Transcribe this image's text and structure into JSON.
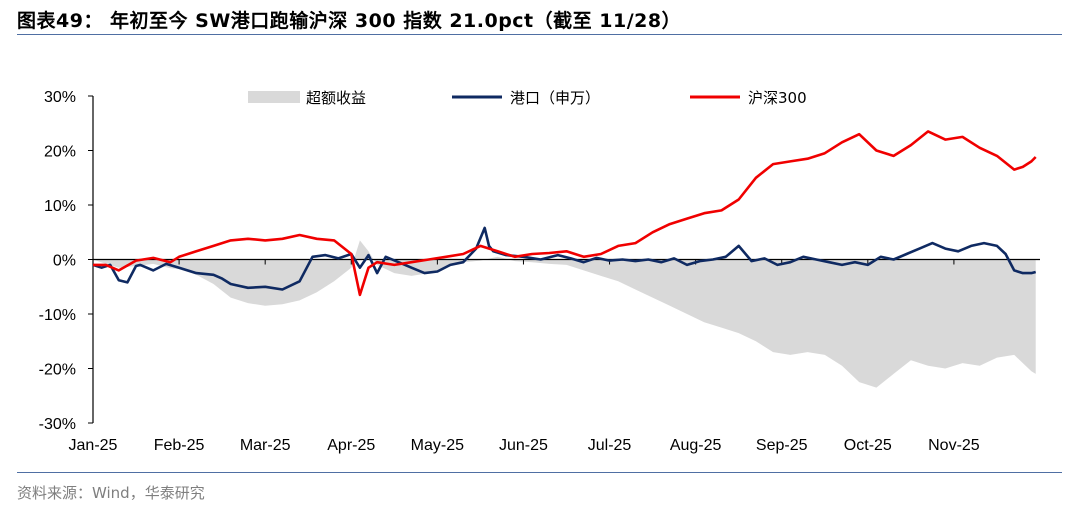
{
  "header": {
    "title": "图表49：  年初至今 SW港口跑输沪深 300 指数 21.0pct（截至 11/28）"
  },
  "footer": {
    "source": "资料来源：Wind，华泰研究"
  },
  "colors": {
    "excess": "#d9d9d9",
    "port": "#0f2a62",
    "csi300": "#f00000",
    "rule": "#4f6fa3"
  },
  "chart_data": {
    "type": "line",
    "title": "",
    "xlabel": "",
    "ylabel": "",
    "ylim": [
      -30,
      30
    ],
    "yticks": [
      -30,
      -20,
      -10,
      0,
      10,
      20,
      30
    ],
    "ytick_labels": [
      "-30%",
      "-20%",
      "-10%",
      "0%",
      "10%",
      "20%",
      "30%"
    ],
    "xlim": [
      0,
      11
    ],
    "xticks": [
      0,
      1,
      2,
      3,
      4,
      5,
      6,
      7,
      8,
      9,
      10
    ],
    "xtick_labels": [
      "Jan-25",
      "Feb-25",
      "Mar-25",
      "Apr-25",
      "May-25",
      "Jun-25",
      "Jul-25",
      "Aug-25",
      "Sep-25",
      "Oct-25",
      "Nov-25"
    ],
    "legend_position": "top",
    "series": [
      {
        "name": "超额收益",
        "kind": "area",
        "x": [
          0,
          0.15,
          0.3,
          0.5,
          0.7,
          0.9,
          1.0,
          1.2,
          1.4,
          1.6,
          1.8,
          2.0,
          2.2,
          2.4,
          2.6,
          2.8,
          3.0,
          3.1,
          3.2,
          3.3,
          3.5,
          3.7,
          3.9,
          4.1,
          4.3,
          4.5,
          4.7,
          4.9,
          5.1,
          5.3,
          5.5,
          5.7,
          5.9,
          6.1,
          6.3,
          6.5,
          6.7,
          6.9,
          7.1,
          7.3,
          7.5,
          7.7,
          7.9,
          8.1,
          8.3,
          8.5,
          8.7,
          8.9,
          9.1,
          9.3,
          9.5,
          9.7,
          9.9,
          10.1,
          10.3,
          10.5,
          10.7,
          10.9,
          10.95
        ],
        "y": [
          0,
          -0.8,
          -1.5,
          -1.2,
          -0.8,
          -1.6,
          -1.8,
          -2.8,
          -4.5,
          -7.0,
          -8.0,
          -8.5,
          -8.2,
          -7.5,
          -6.0,
          -4.0,
          -1.5,
          3.5,
          1.5,
          -1.0,
          -2.5,
          -3.0,
          -2.5,
          -1.5,
          -0.5,
          -0.2,
          0.5,
          -0.3,
          -0.5,
          -0.8,
          -1.0,
          -2.0,
          -3.0,
          -4.0,
          -5.5,
          -7.0,
          -8.5,
          -10.0,
          -11.5,
          -12.5,
          -13.5,
          -15.0,
          -17.0,
          -17.5,
          -17.0,
          -17.5,
          -19.5,
          -22.5,
          -23.5,
          -21.0,
          -18.5,
          -19.5,
          -20.0,
          -19.0,
          -19.5,
          -18.0,
          -17.5,
          -20.5,
          -21.0
        ]
      },
      {
        "name": "港口（申万）",
        "kind": "line",
        "x": [
          0,
          0.1,
          0.2,
          0.3,
          0.4,
          0.5,
          0.55,
          0.7,
          0.85,
          1.0,
          1.2,
          1.4,
          1.5,
          1.6,
          1.8,
          2.0,
          2.2,
          2.4,
          2.55,
          2.7,
          2.85,
          3.0,
          3.1,
          3.2,
          3.3,
          3.4,
          3.55,
          3.7,
          3.85,
          4.0,
          4.15,
          4.3,
          4.45,
          4.55,
          4.6,
          4.65,
          4.8,
          5.0,
          5.2,
          5.4,
          5.55,
          5.7,
          5.85,
          6.0,
          6.15,
          6.3,
          6.45,
          6.6,
          6.75,
          6.9,
          7.05,
          7.2,
          7.35,
          7.5,
          7.65,
          7.8,
          7.95,
          8.1,
          8.25,
          8.4,
          8.55,
          8.7,
          8.85,
          9.0,
          9.15,
          9.3,
          9.45,
          9.6,
          9.75,
          9.9,
          10.05,
          10.2,
          10.35,
          10.5,
          10.6,
          10.7,
          10.8,
          10.9,
          10.95
        ],
        "y": [
          -1.0,
          -1.5,
          -1.0,
          -3.8,
          -4.2,
          -1.2,
          -1.0,
          -2.0,
          -0.8,
          -1.5,
          -2.5,
          -2.8,
          -3.5,
          -4.5,
          -5.2,
          -5.0,
          -5.5,
          -4.0,
          0.5,
          0.8,
          0.2,
          1.0,
          -1.5,
          0.8,
          -2.5,
          0.5,
          -0.5,
          -1.5,
          -2.5,
          -2.2,
          -1.0,
          -0.5,
          2.0,
          5.8,
          2.5,
          1.5,
          0.8,
          0.5,
          0.0,
          0.8,
          0.2,
          -0.5,
          0.3,
          -0.2,
          0.0,
          -0.3,
          0.0,
          -0.5,
          0.2,
          -1.0,
          -0.3,
          0.0,
          0.5,
          2.5,
          -0.3,
          0.2,
          -1.0,
          -0.5,
          0.5,
          0.0,
          -0.5,
          -1.0,
          -0.5,
          -1.0,
          0.5,
          0.0,
          1.0,
          2.0,
          3.0,
          2.0,
          1.5,
          2.5,
          3.0,
          2.5,
          1.0,
          -2.0,
          -2.5,
          -2.5,
          -2.3
        ]
      },
      {
        "name": "沪深300",
        "kind": "line",
        "x": [
          0,
          0.15,
          0.3,
          0.5,
          0.7,
          0.9,
          1.0,
          1.2,
          1.4,
          1.6,
          1.8,
          2.0,
          2.2,
          2.4,
          2.6,
          2.8,
          3.0,
          3.1,
          3.2,
          3.3,
          3.5,
          3.7,
          3.9,
          4.1,
          4.3,
          4.5,
          4.7,
          4.9,
          5.1,
          5.3,
          5.5,
          5.7,
          5.9,
          6.1,
          6.3,
          6.5,
          6.7,
          6.9,
          7.1,
          7.3,
          7.5,
          7.7,
          7.9,
          8.1,
          8.3,
          8.5,
          8.7,
          8.9,
          9.1,
          9.3,
          9.5,
          9.7,
          9.9,
          10.1,
          10.3,
          10.5,
          10.7,
          10.8,
          10.9,
          10.95
        ],
        "y": [
          -1.0,
          -1.0,
          -2.0,
          -0.2,
          0.3,
          -0.5,
          0.5,
          1.5,
          2.5,
          3.5,
          3.8,
          3.5,
          3.8,
          4.5,
          3.8,
          3.5,
          1.0,
          -6.5,
          -1.5,
          -0.5,
          -1.0,
          -0.5,
          0.0,
          0.5,
          1.0,
          2.5,
          1.5,
          0.5,
          1.0,
          1.2,
          1.5,
          0.5,
          1.0,
          2.5,
          3.0,
          5.0,
          6.5,
          7.5,
          8.5,
          9.0,
          11.0,
          15.0,
          17.5,
          18.0,
          18.5,
          19.5,
          21.5,
          23.0,
          20.0,
          19.0,
          21.0,
          23.5,
          22.0,
          22.5,
          20.5,
          19.0,
          16.5,
          17.0,
          18.0,
          18.8
        ]
      }
    ]
  }
}
